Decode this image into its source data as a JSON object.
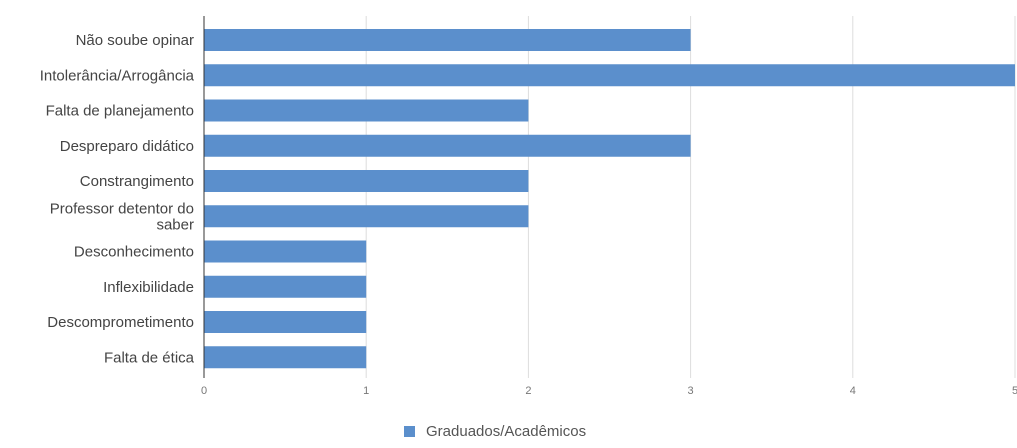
{
  "chart_data": {
    "type": "bar",
    "orientation": "horizontal",
    "categories": [
      [
        "Não soube opinar"
      ],
      [
        "Intolerância/Arrogância"
      ],
      [
        "Falta de planejamento"
      ],
      [
        "Despreparo didático"
      ],
      [
        "Constrangimento"
      ],
      [
        "Professor detentor do",
        "saber"
      ],
      [
        "Desconhecimento"
      ],
      [
        "Inflexibilidade"
      ],
      [
        "Descomprometimento"
      ],
      [
        "Falta de ética"
      ]
    ],
    "series": [
      {
        "name": "Graduados/Acadêmicos",
        "color": "#5b8fcc",
        "values": [
          3,
          5,
          2,
          3,
          2,
          2,
          1,
          1,
          1,
          1
        ]
      }
    ],
    "xlim": [
      0,
      5
    ],
    "xticks": [
      0,
      1,
      2,
      3,
      4,
      5
    ],
    "grid": true,
    "legend_position": "bottom-center"
  }
}
